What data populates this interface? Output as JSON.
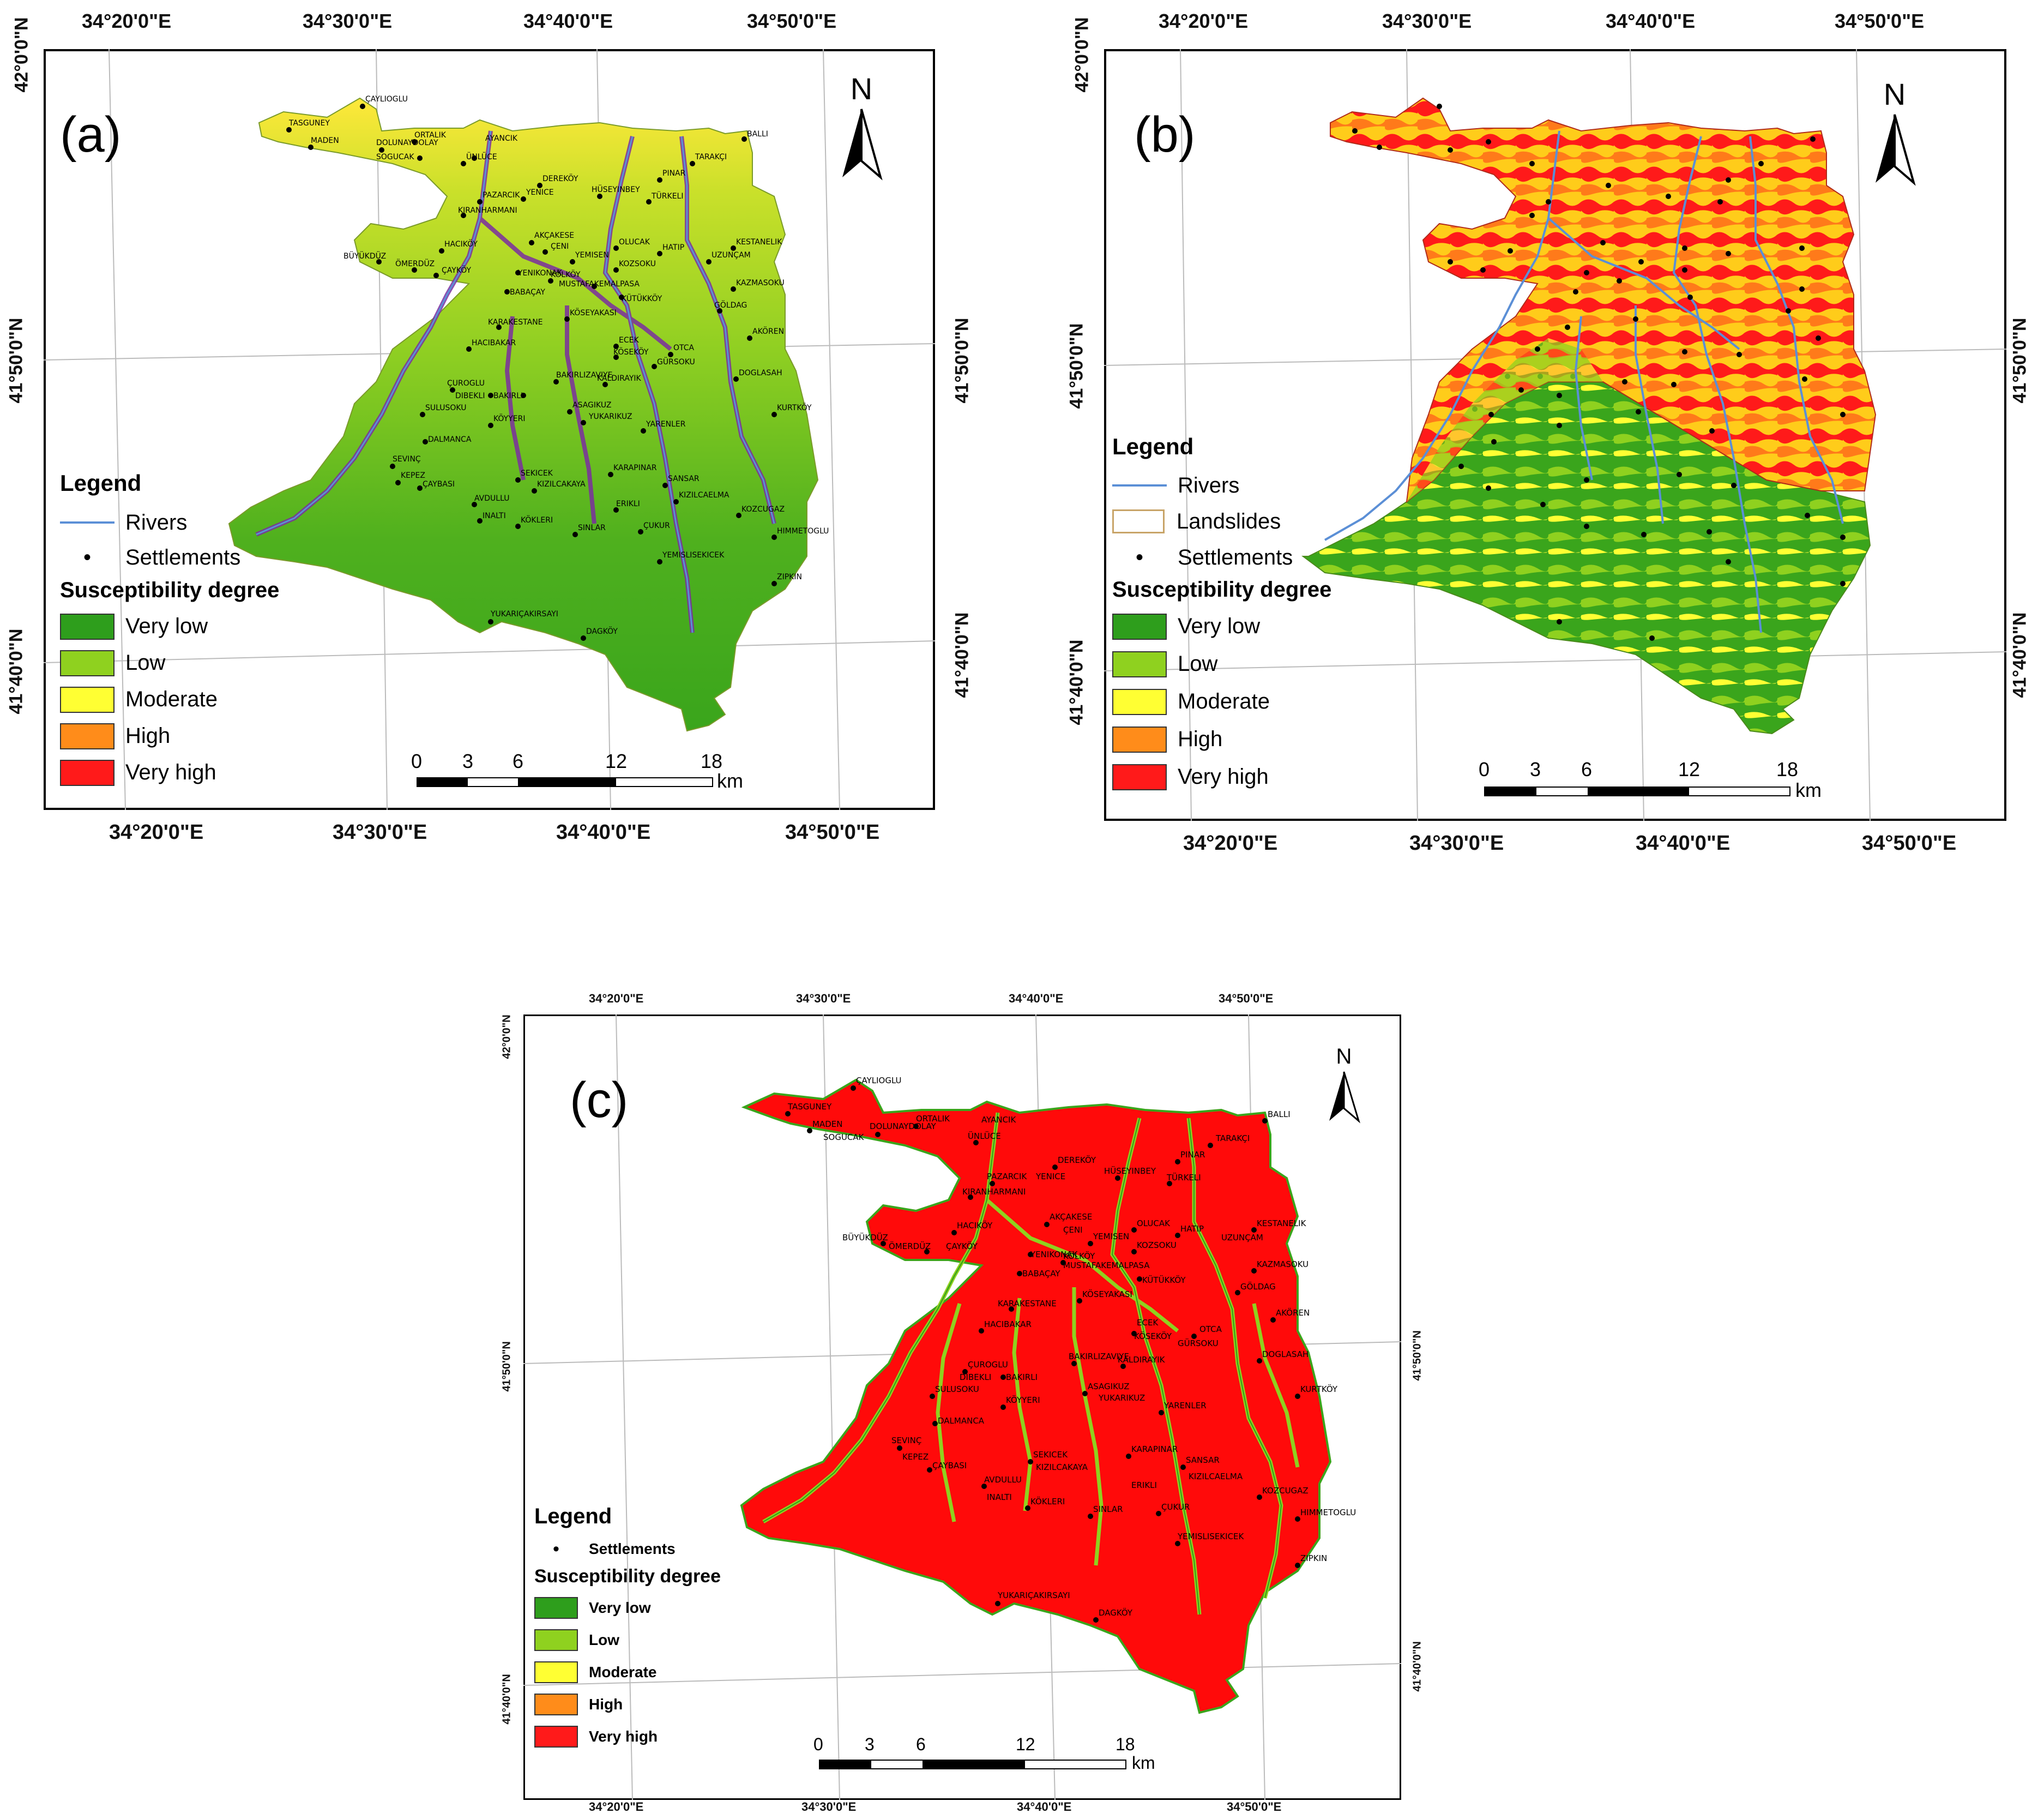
{
  "panels": {
    "a": {
      "label": "(a)",
      "top_ticks": [
        "34°20'0\"E",
        "34°30'0\"E",
        "34°40'0\"E",
        "34°50'0\"E"
      ],
      "bottom_ticks": [
        "34°20'0\"E",
        "34°30'0\"E",
        "34°40'0\"E",
        "34°50'0\"E"
      ],
      "left_ticks": [
        "42°0'0\"N",
        "41°50'0\"N",
        "41°40'0\"N"
      ],
      "right_ticks": [
        "41°50'0\"N",
        "41°40'0\"N"
      ],
      "north": "N",
      "legend": {
        "title": "Legend",
        "items": [
          "Rivers",
          "Settlements"
        ],
        "subtitle": "Susceptibility degree",
        "classes": [
          "Very low",
          "Low",
          "Moderate",
          "High",
          "Very high"
        ]
      },
      "scale": {
        "ticks": [
          "0",
          "3",
          "6",
          "12",
          "18"
        ],
        "unit": "km"
      }
    },
    "b": {
      "label": "(b)",
      "top_ticks": [
        "34°20'0\"E",
        "34°30'0\"E",
        "34°40'0\"E",
        "34°50'0\"E"
      ],
      "bottom_ticks": [
        "34°20'0\"E",
        "34°30'0\"E",
        "34°40'0\"E",
        "34°50'0\"E"
      ],
      "left_ticks": [
        "42°0'0\"N",
        "41°50'0\"N",
        "41°40'0\"N"
      ],
      "right_ticks": [
        "41°50'0\"N",
        "41°40'0\"N"
      ],
      "north": "N",
      "legend": {
        "title": "Legend",
        "items": [
          "Rivers",
          "Landslides",
          "Settlements"
        ],
        "subtitle": "Susceptibility degree",
        "classes": [
          "Very low",
          "Low",
          "Moderate",
          "High",
          "Very high"
        ]
      },
      "scale": {
        "ticks": [
          "0",
          "3",
          "6",
          "12",
          "18"
        ],
        "unit": "km"
      }
    },
    "c": {
      "label": "(c)",
      "top_ticks": [
        "34°20'0\"E",
        "34°30'0\"E",
        "34°40'0\"E",
        "34°50'0\"E"
      ],
      "bottom_ticks": [
        "34°20'0\"E",
        "34°30'0\"E",
        "34°40'0\"E",
        "34°50'0\"E"
      ],
      "left_ticks": [
        "42°0'0\"N",
        "41°50'0\"N",
        "41°40'0\"N"
      ],
      "right_ticks": [
        "41°50'0\"N",
        "41°40'0\"N"
      ],
      "north": "N",
      "legend": {
        "title": "Legend",
        "items": [
          "Settlements"
        ],
        "subtitle": "Susceptibility degree",
        "classes": [
          "Very low",
          "Low",
          "Moderate",
          "High",
          "Very high"
        ]
      },
      "scale": {
        "ticks": [
          "0",
          "3",
          "6",
          "12",
          "18"
        ],
        "unit": "km"
      }
    }
  },
  "class_colors": [
    "#2e9e1c",
    "#8fd11f",
    "#ffff33",
    "#ff8c1a",
    "#ff1a1a"
  ],
  "river_color": "#5b8fd6",
  "landslide_color": "#c8a468",
  "settlements": [
    "ÇAYLIOGLU",
    "TASGUNEY",
    "MADEN",
    "ORTALIK",
    "DOLUNAYDOLAY",
    "SOGUCAK",
    "AYANCIK",
    "ÜNLÜCE",
    "BALLI",
    "TARAKÇI",
    "PINAR",
    "DEREKÖY",
    "YENICE",
    "HÜSEYINBEY",
    "TÜRKELI",
    "PAZARCIK",
    "KIRANHARMANI",
    "AKÇAKESE",
    "ÇENI",
    "OLUCAK",
    "HATIP",
    "KESTANELIK",
    "UZUNÇAM",
    "HACIKÖY",
    "BÜYÜKDÜZ",
    "ÖMERDÜZ",
    "ÇAYKÖY",
    "YEMISEN",
    "KOZSOKU",
    "YENIKONAK",
    "KÖLKÖY",
    "MUSTAFAKEMALPASA",
    "BABAÇAY",
    "KÜTÜKKÖY",
    "KAZMASOKU",
    "GÖLDAG",
    "KÖSEYAKASI",
    "KARAKESTANE",
    "HACIBAKAR",
    "AKÖREN",
    "ECEK",
    "KÖSEKÖY",
    "OTCA",
    "GÜRSOKU",
    "ÇUROGLU",
    "BAKIRLIZAVIYE",
    "KALDIRAYIK",
    "DOGLASAH",
    "DIBEKLI",
    "BAKIRLI",
    "SULUSOKU",
    "KÖYYERI",
    "ASAGIKUZ",
    "YUKARIKUZ",
    "KURTKÖY",
    "YARENLER",
    "DALMANCA",
    "SEVINÇ",
    "KEPEZ",
    "ÇAYBASI",
    "SEKICEK",
    "KIZILCAKAYA",
    "KARAPINAR",
    "SANSAR",
    "KIZILCAELMA",
    "AVDULLU",
    "INALTI",
    "KÖKLERI",
    "ERIKLI",
    "SINLAR",
    "ÇUKUR",
    "KOZCUGAZ",
    "HIMMETOGLU",
    "YEMISLISEKICEK",
    "ZIPKIN",
    "YUKARIÇAKIRSAYI",
    "DAGKÖY"
  ]
}
